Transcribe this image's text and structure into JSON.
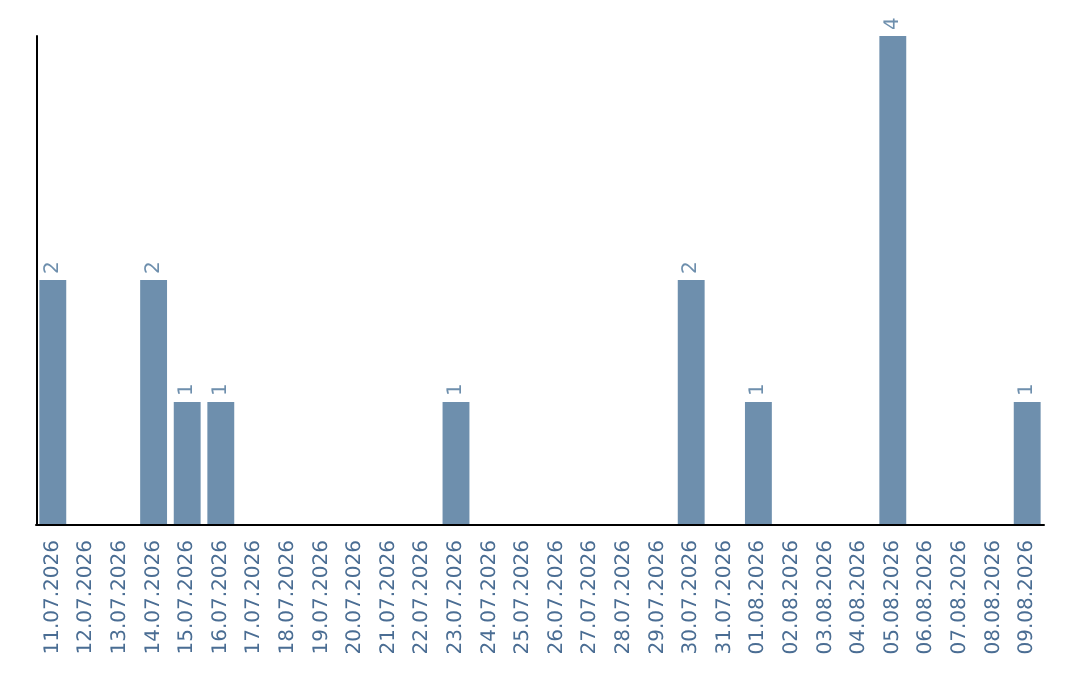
{
  "chart_data": {
    "type": "bar",
    "categories": [
      "11.07.2026",
      "12.07.2026",
      "13.07.2026",
      "14.07.2026",
      "15.07.2026",
      "16.07.2026",
      "17.07.2026",
      "18.07.2026",
      "19.07.2026",
      "20.07.2026",
      "21.07.2026",
      "22.07.2026",
      "23.07.2026",
      "24.07.2026",
      "25.07.2026",
      "26.07.2026",
      "27.07.2026",
      "28.07.2026",
      "29.07.2026",
      "30.07.2026",
      "31.07.2026",
      "01.08.2026",
      "02.08.2026",
      "03.08.2026",
      "04.08.2026",
      "05.08.2026",
      "06.08.2026",
      "07.08.2026",
      "08.08.2026",
      "09.08.2026"
    ],
    "values": [
      2,
      0,
      0,
      2,
      1,
      1,
      0,
      0,
      0,
      0,
      0,
      0,
      1,
      0,
      0,
      0,
      0,
      0,
      0,
      2,
      0,
      1,
      0,
      0,
      0,
      4,
      0,
      0,
      0,
      1
    ],
    "value_labels": [
      "2",
      null,
      null,
      "2",
      "1",
      "1",
      null,
      null,
      null,
      null,
      null,
      null,
      "1",
      null,
      null,
      null,
      null,
      null,
      null,
      "2",
      null,
      "1",
      null,
      null,
      null,
      "4",
      null,
      null,
      null,
      "1"
    ],
    "color": "#6e8fad",
    "tick_labels": "x"
  }
}
